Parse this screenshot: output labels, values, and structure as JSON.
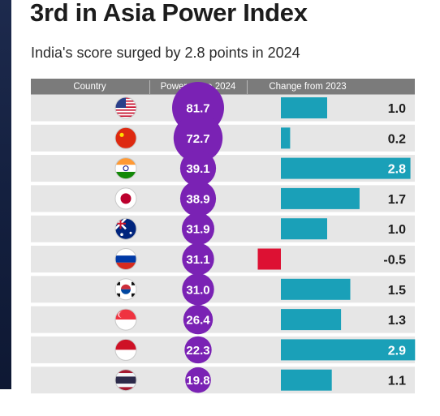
{
  "title": "3rd in Asia Power Index",
  "subtitle": "India's score surged by 2.8 points in 2024",
  "chart_data": {
    "type": "table",
    "columns": [
      "Country",
      "Power score 2024",
      "Change from 2023"
    ],
    "highlight": "India",
    "rows": [
      {
        "country": "U.S.",
        "flag_icon": "us-flag-icon",
        "score": "81.7",
        "change": "1.0",
        "change_value": 1.0
      },
      {
        "country": "China",
        "flag_icon": "china-flag-icon",
        "score": "72.7",
        "change": "0.2",
        "change_value": 0.2
      },
      {
        "country": "India",
        "flag_icon": "india-flag-icon",
        "score": "39.1",
        "change": "2.8",
        "change_value": 2.8
      },
      {
        "country": "Japan",
        "flag_icon": "japan-flag-icon",
        "score": "38.9",
        "change": "1.7",
        "change_value": 1.7
      },
      {
        "country": "Australia",
        "flag_icon": "australia-flag-icon",
        "score": "31.9",
        "change": "1.0",
        "change_value": 1.0
      },
      {
        "country": "Russia",
        "flag_icon": "russia-flag-icon",
        "score": "31.1",
        "change": "-0.5",
        "change_value": -0.5
      },
      {
        "country": "South Korea",
        "flag_icon": "south-korea-flag-icon",
        "score": "31.0",
        "change": "1.5",
        "change_value": 1.5
      },
      {
        "country": "Singapore",
        "flag_icon": "singapore-flag-icon",
        "score": "26.4",
        "change": "1.3",
        "change_value": 1.3
      },
      {
        "country": "Indonesia",
        "flag_icon": "indonesia-flag-icon",
        "score": "22.3",
        "change": "2.9",
        "change_value": 2.9
      },
      {
        "country": "Thailand",
        "flag_icon": "thailand-flag-icon",
        "score": "19.8",
        "change": "1.1",
        "change_value": 1.1
      }
    ],
    "colors": {
      "bubble": "#7a22b4",
      "positive_bar": "#1aa0b8",
      "negative_bar": "#dd1133",
      "row_bg": "#e6e6e6",
      "header_bg": "#7b7b7b"
    }
  }
}
